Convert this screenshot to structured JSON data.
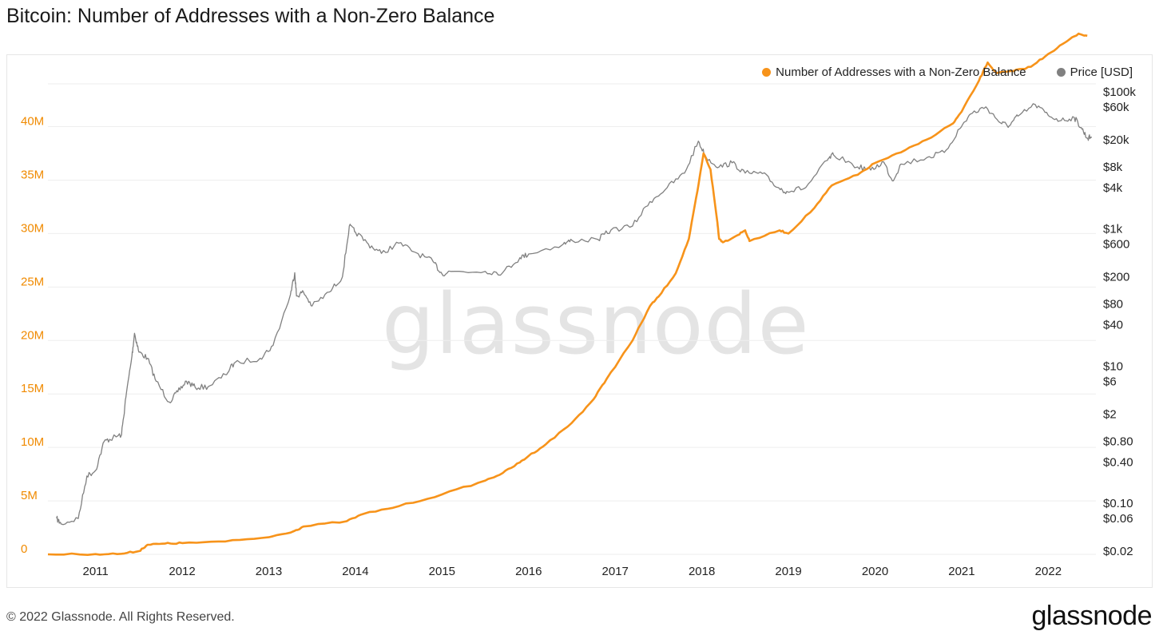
{
  "title": "Bitcoin: Number of Addresses with a Non-Zero Balance",
  "watermark": "glassnode",
  "footer": "© 2022 Glassnode. All Rights Reserved.",
  "brand": "glassnode",
  "colors": {
    "addresses": "#f7931a",
    "price": "#808080",
    "left_axis_text": "#f08a00",
    "grid": "#eeeeee"
  },
  "legend": [
    {
      "label": "Number of Addresses with a Non-Zero Balance",
      "color": "#f7931a"
    },
    {
      "label": "Price [USD]",
      "color": "#808080"
    }
  ],
  "chart_data": {
    "type": "line",
    "title": "Bitcoin: Number of Addresses with a Non-Zero Balance",
    "x_ticks": [
      "2011",
      "2012",
      "2013",
      "2014",
      "2015",
      "2016",
      "2017",
      "2018",
      "2019",
      "2020",
      "2021",
      "2022"
    ],
    "x_range": [
      2010.45,
      2022.55
    ],
    "left_axis": {
      "ticks": [
        "0",
        "5M",
        "10M",
        "15M",
        "20M",
        "25M",
        "30M",
        "35M",
        "40M"
      ],
      "range": [
        0,
        44000000
      ]
    },
    "right_axis": {
      "scale": "log",
      "ticks": [
        {
          "label": "$0.02",
          "value": 0.02
        },
        {
          "label": "$0.06",
          "value": 0.06
        },
        {
          "label": "$0.10",
          "value": 0.1
        },
        {
          "label": "$0.40",
          "value": 0.4
        },
        {
          "label": "$0.80",
          "value": 0.8
        },
        {
          "label": "$2",
          "value": 2
        },
        {
          "label": "$6",
          "value": 6
        },
        {
          "label": "$10",
          "value": 10
        },
        {
          "label": "$40",
          "value": 40
        },
        {
          "label": "$80",
          "value": 80
        },
        {
          "label": "$200",
          "value": 200
        },
        {
          "label": "$600",
          "value": 600
        },
        {
          "label": "$1k",
          "value": 1000
        },
        {
          "label": "$4k",
          "value": 4000
        },
        {
          "label": "$8k",
          "value": 8000
        },
        {
          "label": "$20k",
          "value": 20000
        },
        {
          "label": "$60k",
          "value": 60000
        },
        {
          "label": "$100k",
          "value": 100000
        }
      ],
      "range": [
        0.018,
        130000
      ]
    },
    "grid": true,
    "legend_position": "top-right",
    "series": [
      {
        "name": "Number of Addresses with a Non-Zero Balance",
        "axis": "left",
        "points": [
          [
            2010.45,
            0.0
          ],
          [
            2011.0,
            0.02
          ],
          [
            2011.3,
            0.05
          ],
          [
            2011.5,
            0.3
          ],
          [
            2011.6,
            0.9
          ],
          [
            2011.8,
            1.0
          ],
          [
            2012.0,
            1.05
          ],
          [
            2012.5,
            1.2
          ],
          [
            2013.0,
            1.6
          ],
          [
            2013.3,
            2.2
          ],
          [
            2013.4,
            2.6
          ],
          [
            2013.9,
            3.1
          ],
          [
            2014.1,
            3.8
          ],
          [
            2014.5,
            4.5
          ],
          [
            2015.0,
            5.6
          ],
          [
            2015.5,
            6.9
          ],
          [
            2015.7,
            7.6
          ],
          [
            2015.9,
            8.6
          ],
          [
            2016.0,
            9.2
          ],
          [
            2016.2,
            10.3
          ],
          [
            2016.5,
            12.3
          ],
          [
            2016.75,
            14.5
          ],
          [
            2016.9,
            16.4
          ],
          [
            2017.2,
            20.0
          ],
          [
            2017.4,
            23.2
          ],
          [
            2017.5,
            24.1
          ],
          [
            2017.7,
            26.3
          ],
          [
            2017.85,
            29.5
          ],
          [
            2017.95,
            34.0
          ],
          [
            2018.02,
            37.5
          ],
          [
            2018.1,
            36.0
          ],
          [
            2018.18,
            31.0
          ],
          [
            2018.2,
            29.5
          ],
          [
            2018.25,
            29.2
          ],
          [
            2018.4,
            29.8
          ],
          [
            2018.5,
            30.3
          ],
          [
            2018.55,
            29.3
          ],
          [
            2018.9,
            30.3
          ],
          [
            2019.0,
            30.0
          ],
          [
            2019.3,
            32.4
          ],
          [
            2019.5,
            34.5
          ],
          [
            2019.8,
            35.5
          ],
          [
            2020.0,
            36.6
          ],
          [
            2020.3,
            37.6
          ],
          [
            2020.6,
            38.8
          ],
          [
            2020.9,
            40.3
          ],
          [
            2021.0,
            41.4
          ],
          [
            2021.2,
            44.3
          ],
          [
            2021.3,
            46.0
          ],
          [
            2021.4,
            45.0
          ],
          [
            2021.6,
            45.2
          ],
          [
            2021.8,
            45.6
          ],
          [
            2022.0,
            46.8
          ],
          [
            2022.2,
            47.9
          ],
          [
            2022.35,
            48.7
          ],
          [
            2022.45,
            48.5
          ]
        ]
      },
      {
        "name": "Price [USD]",
        "axis": "right",
        "points": [
          [
            2010.55,
            0.06
          ],
          [
            2010.6,
            0.05
          ],
          [
            2010.8,
            0.06
          ],
          [
            2010.9,
            0.25
          ],
          [
            2011.0,
            0.3
          ],
          [
            2011.1,
            0.8
          ],
          [
            2011.2,
            0.9
          ],
          [
            2011.3,
            1.0
          ],
          [
            2011.35,
            3.5
          ],
          [
            2011.42,
            14.0
          ],
          [
            2011.45,
            30.0
          ],
          [
            2011.5,
            16.0
          ],
          [
            2011.6,
            13.0
          ],
          [
            2011.7,
            6.0
          ],
          [
            2011.85,
            3.0
          ],
          [
            2011.95,
            4.2
          ],
          [
            2012.05,
            6.0
          ],
          [
            2012.15,
            4.9
          ],
          [
            2012.3,
            5.0
          ],
          [
            2012.5,
            7.5
          ],
          [
            2012.6,
            11.0
          ],
          [
            2012.9,
            13.0
          ],
          [
            2013.05,
            20.0
          ],
          [
            2013.25,
            110.0
          ],
          [
            2013.3,
            230.0
          ],
          [
            2013.32,
            105.0
          ],
          [
            2013.4,
            120.0
          ],
          [
            2013.5,
            75.0
          ],
          [
            2013.7,
            120.0
          ],
          [
            2013.85,
            200.0
          ],
          [
            2013.93,
            1100.0
          ],
          [
            2014.0,
            900.0
          ],
          [
            2014.15,
            600.0
          ],
          [
            2014.3,
            440.0
          ],
          [
            2014.5,
            620.0
          ],
          [
            2014.7,
            450.0
          ],
          [
            2014.9,
            330.0
          ],
          [
            2015.0,
            220.0
          ],
          [
            2015.1,
            240.0
          ],
          [
            2015.5,
            240.0
          ],
          [
            2015.7,
            230.0
          ],
          [
            2015.9,
            380.0
          ],
          [
            2016.0,
            430.0
          ],
          [
            2016.4,
            600.0
          ],
          [
            2016.5,
            680.0
          ],
          [
            2016.8,
            700.0
          ],
          [
            2016.95,
            960.0
          ],
          [
            2017.2,
            1100.0
          ],
          [
            2017.4,
            2500.0
          ],
          [
            2017.6,
            4000.0
          ],
          [
            2017.8,
            6500.0
          ],
          [
            2017.96,
            19000.0
          ],
          [
            2018.05,
            11000.0
          ],
          [
            2018.2,
            8000.0
          ],
          [
            2018.35,
            9200.0
          ],
          [
            2018.5,
            6500.0
          ],
          [
            2018.7,
            6400.0
          ],
          [
            2018.88,
            4000.0
          ],
          [
            2018.98,
            3500.0
          ],
          [
            2019.2,
            4000.0
          ],
          [
            2019.45,
            10000.0
          ],
          [
            2019.52,
            12000.0
          ],
          [
            2019.8,
            8000.0
          ],
          [
            2019.95,
            7200.0
          ],
          [
            2020.1,
            9500.0
          ],
          [
            2020.2,
            5000.0
          ],
          [
            2020.3,
            8800.0
          ],
          [
            2020.6,
            11000.0
          ],
          [
            2020.8,
            13000.0
          ],
          [
            2020.98,
            29000.0
          ],
          [
            2021.1,
            47000.0
          ],
          [
            2021.28,
            60000.0
          ],
          [
            2021.45,
            35000.0
          ],
          [
            2021.55,
            32000.0
          ],
          [
            2021.65,
            44000.0
          ],
          [
            2021.85,
            65000.0
          ],
          [
            2022.0,
            45000.0
          ],
          [
            2022.15,
            38000.0
          ],
          [
            2022.3,
            42000.0
          ],
          [
            2022.38,
            30000.0
          ],
          [
            2022.45,
            21000.0
          ],
          [
            2022.5,
            22000.0
          ]
        ]
      }
    ]
  }
}
